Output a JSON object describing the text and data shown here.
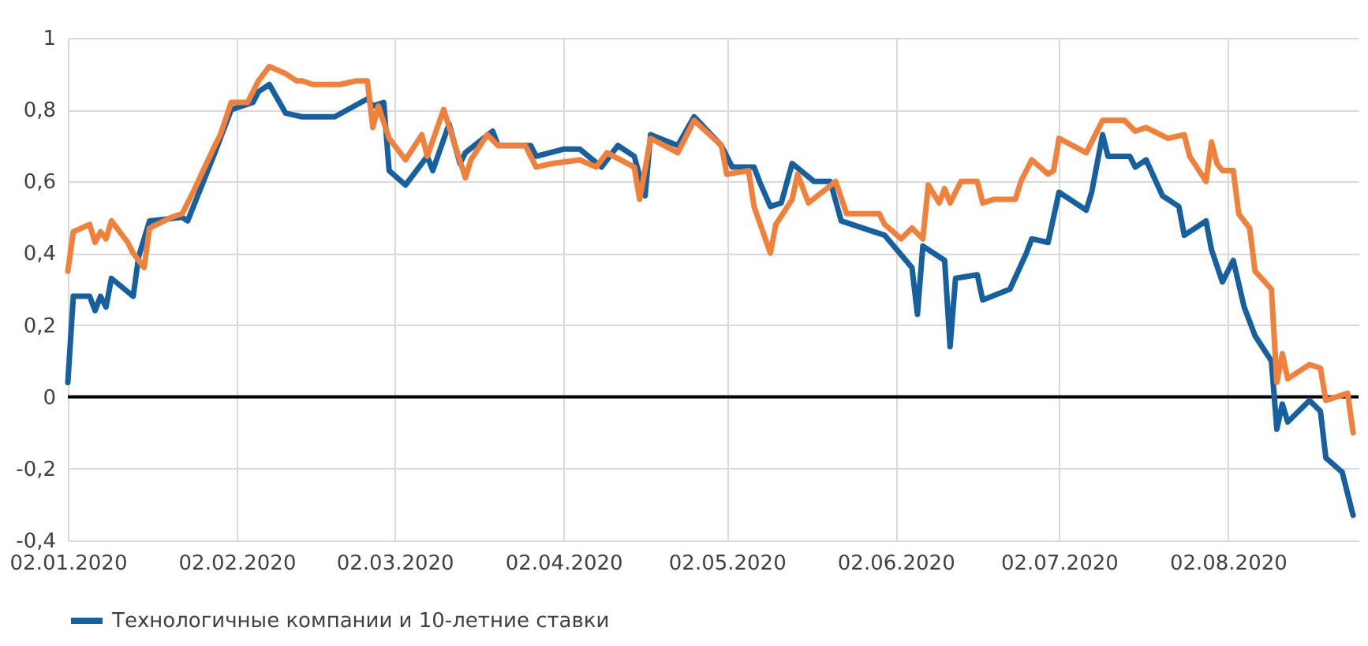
{
  "chart_data": {
    "type": "line",
    "legend": "bottom",
    "grid": true,
    "xlim": [
      "2020-01-02",
      "2020-08-26"
    ],
    "xticks": [
      {
        "value": "2020-01-02",
        "label": "02.01.2020"
      },
      {
        "value": "2020-02-02",
        "label": "02.02.2020"
      },
      {
        "value": "2020-03-02",
        "label": "02.03.2020"
      },
      {
        "value": "2020-04-02",
        "label": "02.04.2020"
      },
      {
        "value": "2020-05-02",
        "label": "02.05.2020"
      },
      {
        "value": "2020-06-02",
        "label": "02.06.2020"
      },
      {
        "value": "2020-07-02",
        "label": "02.07.2020"
      },
      {
        "value": "2020-08-02",
        "label": "02.08.2020"
      }
    ],
    "ylim": [
      -0.4,
      1
    ],
    "yticks": [
      {
        "value": -0.4,
        "label": "-0,4"
      },
      {
        "value": -0.2,
        "label": "-0,2"
      },
      {
        "value": 0,
        "label": "0"
      },
      {
        "value": 0.2,
        "label": "0,2"
      },
      {
        "value": 0.4,
        "label": "0,4"
      },
      {
        "value": 0.6,
        "label": "0,6"
      },
      {
        "value": 0.8,
        "label": "0,8"
      },
      {
        "value": 1,
        "label": "1"
      }
    ],
    "ref_lines": [
      {
        "axis": "y",
        "value": 0,
        "color": "#000000"
      }
    ],
    "series": [
      {
        "name": "Технологичные компании и 10-летние ставки",
        "color": "#1660a0",
        "x": [
          "2020-01-02",
          "2020-01-03",
          "2020-01-06",
          "2020-01-07",
          "2020-01-08",
          "2020-01-09",
          "2020-01-10",
          "2020-01-14",
          "2020-01-15",
          "2020-01-17",
          "2020-01-23",
          "2020-01-24",
          "2020-01-29",
          "2020-02-01",
          "2020-02-05",
          "2020-02-06",
          "2020-02-08",
          "2020-02-11",
          "2020-02-14",
          "2020-02-20",
          "2020-02-26",
          "2020-02-27",
          "2020-02-29",
          "2020-03-01",
          "2020-03-04",
          "2020-03-08",
          "2020-03-09",
          "2020-03-12",
          "2020-03-14",
          "2020-03-15",
          "2020-03-20",
          "2020-03-21",
          "2020-03-27",
          "2020-03-28",
          "2020-04-02",
          "2020-04-05",
          "2020-04-09",
          "2020-04-12",
          "2020-04-15",
          "2020-04-17",
          "2020-04-18",
          "2020-04-23",
          "2020-04-26",
          "2020-05-01",
          "2020-05-03",
          "2020-05-07",
          "2020-05-08",
          "2020-05-10",
          "2020-05-12",
          "2020-05-14",
          "2020-05-18",
          "2020-05-21",
          "2020-05-23",
          "2020-05-29",
          "2020-05-31",
          "2020-06-05",
          "2020-06-06",
          "2020-06-07",
          "2020-06-11",
          "2020-06-12",
          "2020-06-13",
          "2020-06-17",
          "2020-06-18",
          "2020-06-23",
          "2020-06-26",
          "2020-06-27",
          "2020-06-30",
          "2020-07-02",
          "2020-07-07",
          "2020-07-08",
          "2020-07-10",
          "2020-07-11",
          "2020-07-15",
          "2020-07-16",
          "2020-07-18",
          "2020-07-21",
          "2020-07-24",
          "2020-07-25",
          "2020-07-29",
          "2020-07-30",
          "2020-08-01",
          "2020-08-03",
          "2020-08-05",
          "2020-08-07",
          "2020-08-10",
          "2020-08-11",
          "2020-08-12",
          "2020-08-13",
          "2020-08-17",
          "2020-08-19",
          "2020-08-20",
          "2020-08-23",
          "2020-08-25"
        ],
        "values": [
          0.04,
          0.28,
          0.28,
          0.24,
          0.28,
          0.25,
          0.33,
          0.28,
          0.39,
          0.49,
          0.5,
          0.49,
          0.68,
          0.8,
          0.82,
          0.85,
          0.87,
          0.79,
          0.78,
          0.78,
          0.83,
          0.81,
          0.82,
          0.63,
          0.59,
          0.67,
          0.63,
          0.76,
          0.65,
          0.68,
          0.74,
          0.7,
          0.7,
          0.67,
          0.69,
          0.69,
          0.64,
          0.7,
          0.67,
          0.56,
          0.73,
          0.7,
          0.78,
          0.7,
          0.64,
          0.64,
          0.6,
          0.53,
          0.54,
          0.65,
          0.6,
          0.6,
          0.49,
          0.46,
          0.45,
          0.36,
          0.23,
          0.42,
          0.38,
          0.14,
          0.33,
          0.34,
          0.27,
          0.3,
          0.4,
          0.44,
          0.43,
          0.57,
          0.52,
          0.57,
          0.73,
          0.67,
          0.67,
          0.64,
          0.66,
          0.56,
          0.53,
          0.45,
          0.49,
          0.41,
          0.32,
          0.38,
          0.25,
          0.17,
          0.1,
          -0.09,
          -0.02,
          -0.07,
          -0.01,
          -0.04,
          -0.17,
          -0.21,
          -0.33
        ]
      },
      {
        "color": "#f0803a",
        "x": [
          "2020-01-02",
          "2020-01-03",
          "2020-01-06",
          "2020-01-07",
          "2020-01-08",
          "2020-01-09",
          "2020-01-10",
          "2020-01-13",
          "2020-01-14",
          "2020-01-16",
          "2020-01-17",
          "2020-01-21",
          "2020-01-23",
          "2020-01-25",
          "2020-01-29",
          "2020-01-30",
          "2020-02-01",
          "2020-02-04",
          "2020-02-06",
          "2020-02-08",
          "2020-02-11",
          "2020-02-13",
          "2020-02-14",
          "2020-02-16",
          "2020-02-21",
          "2020-02-24",
          "2020-02-26",
          "2020-02-27",
          "2020-02-28",
          "2020-03-01",
          "2020-03-04",
          "2020-03-07",
          "2020-03-08",
          "2020-03-11",
          "2020-03-15",
          "2020-03-16",
          "2020-03-19",
          "2020-03-21",
          "2020-03-26",
          "2020-03-28",
          "2020-03-31",
          "2020-04-05",
          "2020-04-08",
          "2020-04-10",
          "2020-04-15",
          "2020-04-16",
          "2020-04-18",
          "2020-04-23",
          "2020-04-26",
          "2020-05-01",
          "2020-05-02",
          "2020-05-06",
          "2020-05-07",
          "2020-05-10",
          "2020-05-11",
          "2020-05-14",
          "2020-05-15",
          "2020-05-17",
          "2020-05-22",
          "2020-05-24",
          "2020-05-30",
          "2020-05-31",
          "2020-06-03",
          "2020-06-05",
          "2020-06-07",
          "2020-06-08",
          "2020-06-10",
          "2020-06-11",
          "2020-06-12",
          "2020-06-14",
          "2020-06-17",
          "2020-06-18",
          "2020-06-20",
          "2020-06-24",
          "2020-06-25",
          "2020-06-27",
          "2020-06-30",
          "2020-07-01",
          "2020-07-02",
          "2020-07-07",
          "2020-07-08",
          "2020-07-10",
          "2020-07-14",
          "2020-07-16",
          "2020-07-18",
          "2020-07-22",
          "2020-07-25",
          "2020-07-26",
          "2020-07-29",
          "2020-07-30",
          "2020-07-31",
          "2020-08-01",
          "2020-08-03",
          "2020-08-04",
          "2020-08-06",
          "2020-08-07",
          "2020-08-10",
          "2020-08-11",
          "2020-08-12",
          "2020-08-13",
          "2020-08-17",
          "2020-08-19",
          "2020-08-20",
          "2020-08-24",
          "2020-08-25"
        ],
        "values": [
          0.35,
          0.46,
          0.48,
          0.43,
          0.46,
          0.44,
          0.49,
          0.43,
          0.4,
          0.36,
          0.47,
          0.5,
          0.51,
          0.57,
          0.7,
          0.73,
          0.82,
          0.82,
          0.88,
          0.92,
          0.9,
          0.88,
          0.88,
          0.87,
          0.87,
          0.88,
          0.88,
          0.75,
          0.81,
          0.72,
          0.66,
          0.73,
          0.67,
          0.8,
          0.61,
          0.66,
          0.73,
          0.7,
          0.7,
          0.64,
          0.65,
          0.66,
          0.64,
          0.68,
          0.64,
          0.55,
          0.72,
          0.68,
          0.77,
          0.7,
          0.62,
          0.63,
          0.53,
          0.4,
          0.48,
          0.55,
          0.62,
          0.54,
          0.6,
          0.51,
          0.51,
          0.48,
          0.44,
          0.47,
          0.44,
          0.59,
          0.54,
          0.58,
          0.54,
          0.6,
          0.6,
          0.54,
          0.55,
          0.55,
          0.6,
          0.66,
          0.62,
          0.63,
          0.72,
          0.68,
          0.71,
          0.77,
          0.77,
          0.74,
          0.75,
          0.72,
          0.73,
          0.67,
          0.6,
          0.71,
          0.65,
          0.63,
          0.63,
          0.51,
          0.47,
          0.35,
          0.3,
          0.04,
          0.12,
          0.05,
          0.09,
          0.08,
          -0.01,
          0.01,
          -0.1
        ]
      }
    ]
  }
}
